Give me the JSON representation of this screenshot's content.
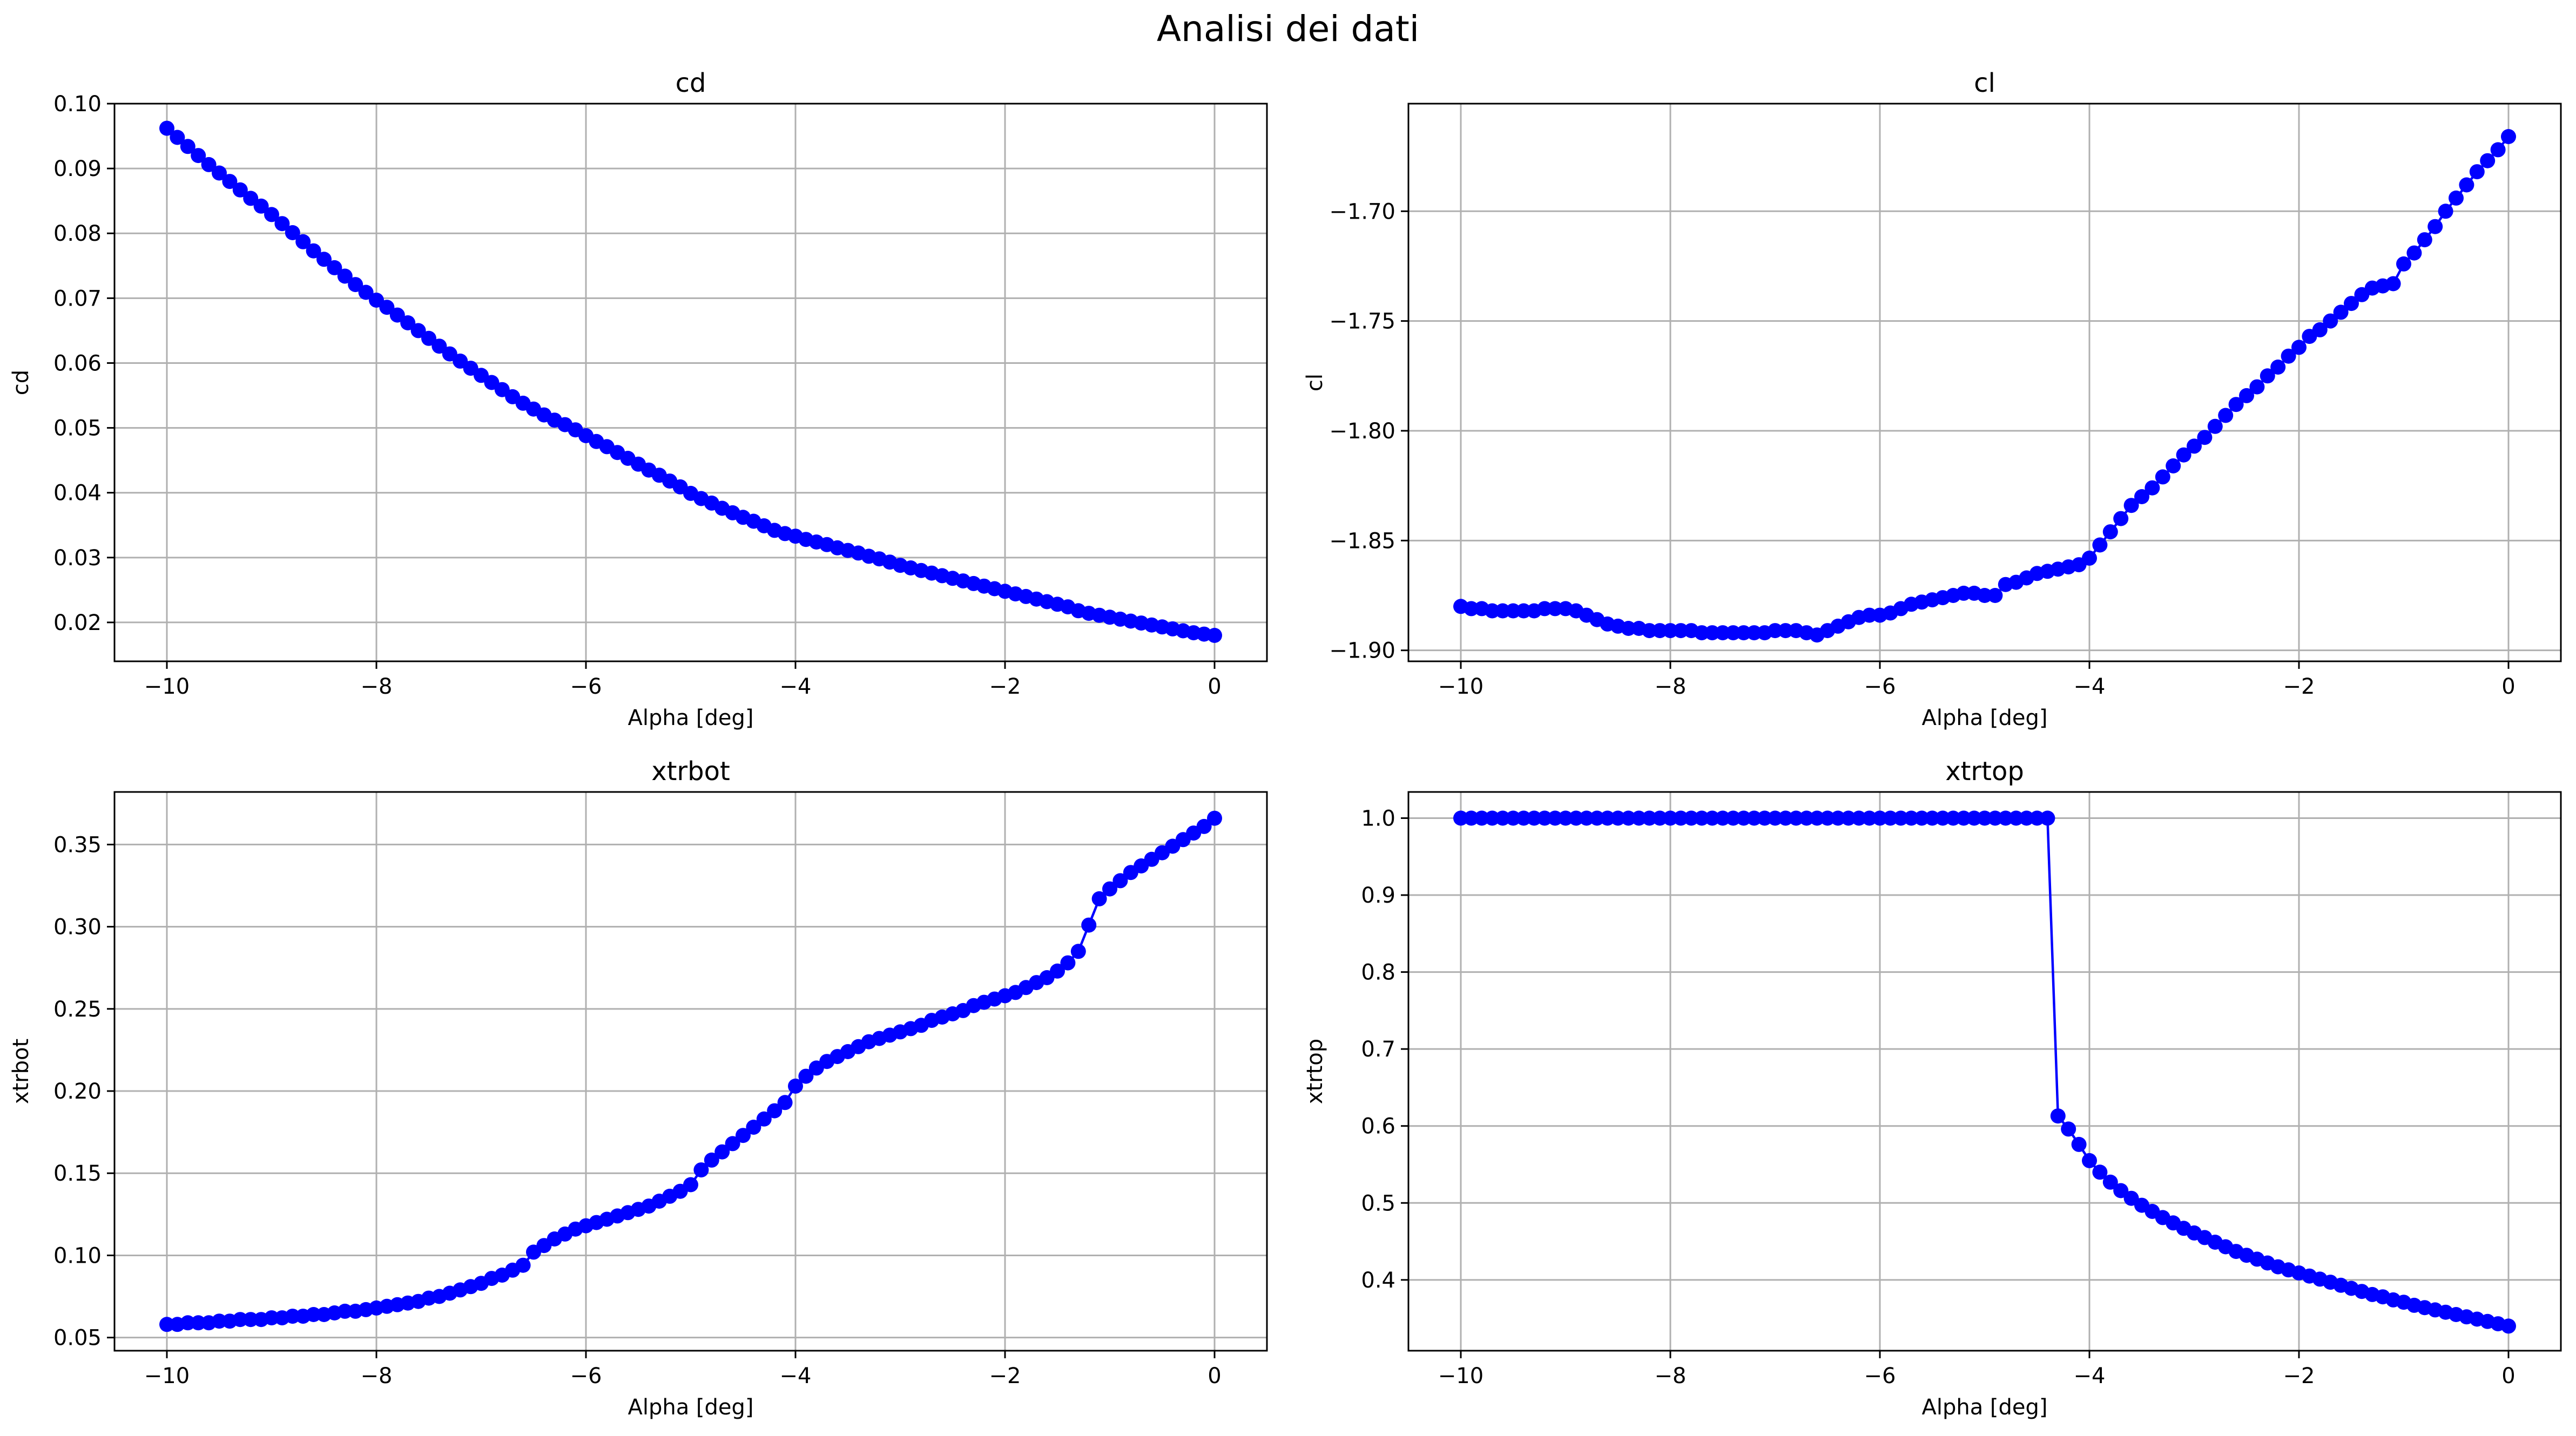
{
  "figure": {
    "title": "Analisi dei dati",
    "series_color": "#0000ff"
  },
  "chart_data": [
    {
      "type": "line",
      "title": "cd",
      "xlabel": "Alpha [deg]",
      "ylabel": "cd",
      "xlim": [
        -10.5,
        0.5
      ],
      "ylim": [
        0.014,
        0.1
      ],
      "xticks": [
        -10,
        -8,
        -6,
        -4,
        -2,
        0
      ],
      "xtick_labels": [
        "−10",
        "−8",
        "−6",
        "−4",
        "−2",
        "0"
      ],
      "yticks": [
        0.02,
        0.03,
        0.04,
        0.05,
        0.06,
        0.07,
        0.08,
        0.09,
        0.1
      ],
      "ytick_labels": [
        "0.02",
        "0.03",
        "0.04",
        "0.05",
        "0.06",
        "0.07",
        "0.08",
        "0.09",
        "0.10"
      ],
      "grid": true,
      "markers": true,
      "x": [
        -10.0,
        -9.9,
        -9.8,
        -9.7,
        -9.6,
        -9.5,
        -9.4,
        -9.3,
        -9.2,
        -9.1,
        -9.0,
        -8.9,
        -8.8,
        -8.7,
        -8.6,
        -8.5,
        -8.4,
        -8.3,
        -8.2,
        -8.1,
        -8.0,
        -7.9,
        -7.8,
        -7.7,
        -7.6,
        -7.5,
        -7.4,
        -7.3,
        -7.2,
        -7.1,
        -7.0,
        -6.9,
        -6.8,
        -6.7,
        -6.6,
        -6.5,
        -6.4,
        -6.3,
        -6.2,
        -6.1,
        -6.0,
        -5.9,
        -5.8,
        -5.7,
        -5.6,
        -5.5,
        -5.4,
        -5.3,
        -5.2,
        -5.1,
        -5.0,
        -4.9,
        -4.8,
        -4.7,
        -4.6,
        -4.5,
        -4.4,
        -4.3,
        -4.2,
        -4.1,
        -4.0,
        -3.9,
        -3.8,
        -3.7,
        -3.6,
        -3.5,
        -3.4,
        -3.3,
        -3.2,
        -3.1,
        -3.0,
        -2.9,
        -2.8,
        -2.7,
        -2.6,
        -2.5,
        -2.4,
        -2.3,
        -2.2,
        -2.1,
        -2.0,
        -1.9,
        -1.8,
        -1.7,
        -1.6,
        -1.5,
        -1.4,
        -1.3,
        -1.2,
        -1.1,
        -1.0,
        -0.9,
        -0.8,
        -0.7,
        -0.6,
        -0.5,
        -0.4,
        -0.3,
        -0.2,
        -0.1,
        0.0
      ],
      "y": [
        0.0962,
        0.0948,
        0.0934,
        0.092,
        0.0906,
        0.0893,
        0.088,
        0.0867,
        0.0854,
        0.0842,
        0.0829,
        0.0815,
        0.0801,
        0.0787,
        0.0773,
        0.076,
        0.0747,
        0.0734,
        0.0721,
        0.0709,
        0.0697,
        0.0686,
        0.0674,
        0.0662,
        0.065,
        0.0638,
        0.0626,
        0.0614,
        0.0603,
        0.0592,
        0.0581,
        0.057,
        0.0559,
        0.0548,
        0.0538,
        0.0529,
        0.052,
        0.0512,
        0.0505,
        0.0497,
        0.0488,
        0.0479,
        0.0471,
        0.0462,
        0.0453,
        0.0444,
        0.0435,
        0.0427,
        0.0418,
        0.0409,
        0.0399,
        0.0391,
        0.0384,
        0.0376,
        0.0369,
        0.0362,
        0.0356,
        0.0349,
        0.0342,
        0.0337,
        0.0333,
        0.0328,
        0.0324,
        0.032,
        0.0315,
        0.0311,
        0.0307,
        0.0302,
        0.0298,
        0.0293,
        0.0288,
        0.0284,
        0.028,
        0.0276,
        0.0272,
        0.0268,
        0.0264,
        0.026,
        0.0256,
        0.0252,
        0.0248,
        0.0244,
        0.024,
        0.0236,
        0.0232,
        0.0228,
        0.0224,
        0.0218,
        0.0214,
        0.0211,
        0.0208,
        0.0205,
        0.0202,
        0.0199,
        0.0196,
        0.0193,
        0.019,
        0.0187,
        0.0184,
        0.0182,
        0.018
      ]
    },
    {
      "type": "line",
      "title": "cl",
      "xlabel": "Alpha [deg]",
      "ylabel": "cl",
      "xlim": [
        -10.5,
        0.5
      ],
      "ylim": [
        -1.905,
        -1.651
      ],
      "xticks": [
        -10,
        -8,
        -6,
        -4,
        -2,
        0
      ],
      "xtick_labels": [
        "−10",
        "−8",
        "−6",
        "−4",
        "−2",
        "0"
      ],
      "yticks": [
        -1.9,
        -1.85,
        -1.8,
        -1.75,
        -1.7
      ],
      "ytick_labels": [
        "−1.90",
        "−1.85",
        "−1.80",
        "−1.75",
        "−1.70"
      ],
      "grid": true,
      "markers": true,
      "x": [
        -10.0,
        -9.9,
        -9.8,
        -9.7,
        -9.6,
        -9.5,
        -9.4,
        -9.3,
        -9.2,
        -9.1,
        -9.0,
        -8.9,
        -8.8,
        -8.7,
        -8.6,
        -8.5,
        -8.4,
        -8.3,
        -8.2,
        -8.1,
        -8.0,
        -7.9,
        -7.8,
        -7.7,
        -7.6,
        -7.5,
        -7.4,
        -7.3,
        -7.2,
        -7.1,
        -7.0,
        -6.9,
        -6.8,
        -6.7,
        -6.6,
        -6.5,
        -6.4,
        -6.3,
        -6.2,
        -6.1,
        -6.0,
        -5.9,
        -5.8,
        -5.7,
        -5.6,
        -5.5,
        -5.4,
        -5.3,
        -5.2,
        -5.1,
        -5.0,
        -4.9,
        -4.8,
        -4.7,
        -4.6,
        -4.5,
        -4.4,
        -4.3,
        -4.2,
        -4.1,
        -4.0,
        -3.9,
        -3.8,
        -3.7,
        -3.6,
        -3.5,
        -3.4,
        -3.3,
        -3.2,
        -3.1,
        -3.0,
        -2.9,
        -2.8,
        -2.7,
        -2.6,
        -2.5,
        -2.4,
        -2.3,
        -2.2,
        -2.1,
        -2.0,
        -1.9,
        -1.8,
        -1.7,
        -1.6,
        -1.5,
        -1.4,
        -1.3,
        -1.2,
        -1.1,
        -1.0,
        -0.9,
        -0.8,
        -0.7,
        -0.6,
        -0.5,
        -0.4,
        -0.3,
        -0.2,
        -0.1,
        0.0
      ],
      "y": [
        -1.88,
        -1.881,
        -1.881,
        -1.882,
        -1.882,
        -1.882,
        -1.882,
        -1.882,
        -1.881,
        -1.881,
        -1.881,
        -1.882,
        -1.884,
        -1.886,
        -1.888,
        -1.889,
        -1.89,
        -1.89,
        -1.891,
        -1.891,
        -1.891,
        -1.891,
        -1.891,
        -1.892,
        -1.892,
        -1.892,
        -1.892,
        -1.892,
        -1.892,
        -1.892,
        -1.891,
        -1.891,
        -1.891,
        -1.892,
        -1.893,
        -1.891,
        -1.889,
        -1.887,
        -1.885,
        -1.884,
        -1.884,
        -1.883,
        -1.881,
        -1.879,
        -1.878,
        -1.877,
        -1.876,
        -1.875,
        -1.874,
        -1.874,
        -1.875,
        -1.875,
        -1.87,
        -1.869,
        -1.867,
        -1.865,
        -1.864,
        -1.863,
        -1.862,
        -1.861,
        -1.858,
        -1.852,
        -1.846,
        -1.84,
        -1.834,
        -1.83,
        -1.826,
        -1.821,
        -1.816,
        -1.811,
        -1.807,
        -1.803,
        -1.798,
        -1.793,
        -1.788,
        -1.784,
        -1.78,
        -1.775,
        -1.771,
        -1.766,
        -1.762,
        -1.757,
        -1.754,
        -1.75,
        -1.746,
        -1.742,
        -1.738,
        -1.735,
        -1.734,
        -1.733,
        -1.724,
        -1.719,
        -1.713,
        -1.707,
        -1.7,
        -1.694,
        -1.688,
        -1.682,
        -1.677,
        -1.672,
        -1.666
      ]
    },
    {
      "type": "line",
      "title": "xtrbot",
      "xlabel": "Alpha [deg]",
      "ylabel": "xtrbot",
      "xlim": [
        -10.5,
        0.5
      ],
      "ylim": [
        0.042,
        0.382
      ],
      "xticks": [
        -10,
        -8,
        -6,
        -4,
        -2,
        0
      ],
      "xtick_labels": [
        "−10",
        "−8",
        "−6",
        "−4",
        "−2",
        "0"
      ],
      "yticks": [
        0.05,
        0.1,
        0.15,
        0.2,
        0.25,
        0.3,
        0.35
      ],
      "ytick_labels": [
        "0.05",
        "0.10",
        "0.15",
        "0.20",
        "0.25",
        "0.30",
        "0.35"
      ],
      "grid": true,
      "markers": true,
      "x": [
        -10.0,
        -9.9,
        -9.8,
        -9.7,
        -9.6,
        -9.5,
        -9.4,
        -9.3,
        -9.2,
        -9.1,
        -9.0,
        -8.9,
        -8.8,
        -8.7,
        -8.6,
        -8.5,
        -8.4,
        -8.3,
        -8.2,
        -8.1,
        -8.0,
        -7.9,
        -7.8,
        -7.7,
        -7.6,
        -7.5,
        -7.4,
        -7.3,
        -7.2,
        -7.1,
        -7.0,
        -6.9,
        -6.8,
        -6.7,
        -6.6,
        -6.5,
        -6.4,
        -6.3,
        -6.2,
        -6.1,
        -6.0,
        -5.9,
        -5.8,
        -5.7,
        -5.6,
        -5.5,
        -5.4,
        -5.3,
        -5.2,
        -5.1,
        -5.0,
        -4.9,
        -4.8,
        -4.7,
        -4.6,
        -4.5,
        -4.4,
        -4.3,
        -4.2,
        -4.1,
        -4.0,
        -3.9,
        -3.8,
        -3.7,
        -3.6,
        -3.5,
        -3.4,
        -3.3,
        -3.2,
        -3.1,
        -3.0,
        -2.9,
        -2.8,
        -2.7,
        -2.6,
        -2.5,
        -2.4,
        -2.3,
        -2.2,
        -2.1,
        -2.0,
        -1.9,
        -1.8,
        -1.7,
        -1.6,
        -1.5,
        -1.4,
        -1.3,
        -1.2,
        -1.1,
        -1.0,
        -0.9,
        -0.8,
        -0.7,
        -0.6,
        -0.5,
        -0.4,
        -0.3,
        -0.2,
        -0.1,
        0.0
      ],
      "y": [
        0.058,
        0.058,
        0.059,
        0.059,
        0.059,
        0.06,
        0.06,
        0.061,
        0.061,
        0.061,
        0.062,
        0.062,
        0.063,
        0.063,
        0.064,
        0.064,
        0.065,
        0.066,
        0.066,
        0.067,
        0.068,
        0.069,
        0.07,
        0.071,
        0.072,
        0.074,
        0.075,
        0.077,
        0.079,
        0.081,
        0.083,
        0.086,
        0.088,
        0.091,
        0.094,
        0.102,
        0.106,
        0.11,
        0.113,
        0.116,
        0.118,
        0.12,
        0.122,
        0.124,
        0.126,
        0.128,
        0.13,
        0.133,
        0.136,
        0.139,
        0.143,
        0.152,
        0.158,
        0.163,
        0.168,
        0.173,
        0.178,
        0.183,
        0.188,
        0.193,
        0.203,
        0.209,
        0.214,
        0.218,
        0.221,
        0.224,
        0.227,
        0.23,
        0.232,
        0.234,
        0.236,
        0.238,
        0.24,
        0.243,
        0.245,
        0.247,
        0.249,
        0.252,
        0.254,
        0.256,
        0.258,
        0.26,
        0.263,
        0.266,
        0.269,
        0.273,
        0.278,
        0.285,
        0.301,
        0.317,
        0.323,
        0.328,
        0.333,
        0.337,
        0.341,
        0.345,
        0.349,
        0.353,
        0.357,
        0.361,
        0.366
      ]
    },
    {
      "type": "line",
      "title": "xtrtop",
      "xlabel": "Alpha [deg]",
      "ylabel": "xtrtop",
      "xlim": [
        -10.5,
        0.5
      ],
      "ylim": [
        0.308,
        1.034
      ],
      "xticks": [
        -10,
        -8,
        -6,
        -4,
        -2,
        0
      ],
      "xtick_labels": [
        "−10",
        "−8",
        "−6",
        "−4",
        "−2",
        "0"
      ],
      "yticks": [
        0.4,
        0.5,
        0.6,
        0.7,
        0.8,
        0.9,
        1.0
      ],
      "ytick_labels": [
        "0.4",
        "0.5",
        "0.6",
        "0.7",
        "0.8",
        "0.9",
        "1.0"
      ],
      "grid": true,
      "markers": true,
      "x": [
        -10.0,
        -9.9,
        -9.8,
        -9.7,
        -9.6,
        -9.5,
        -9.4,
        -9.3,
        -9.2,
        -9.1,
        -9.0,
        -8.9,
        -8.8,
        -8.7,
        -8.6,
        -8.5,
        -8.4,
        -8.3,
        -8.2,
        -8.1,
        -8.0,
        -7.9,
        -7.8,
        -7.7,
        -7.6,
        -7.5,
        -7.4,
        -7.3,
        -7.2,
        -7.1,
        -7.0,
        -6.9,
        -6.8,
        -6.7,
        -6.6,
        -6.5,
        -6.4,
        -6.3,
        -6.2,
        -6.1,
        -6.0,
        -5.9,
        -5.8,
        -5.7,
        -5.6,
        -5.5,
        -5.4,
        -5.3,
        -5.2,
        -5.1,
        -5.0,
        -4.9,
        -4.8,
        -4.7,
        -4.6,
        -4.5,
        -4.4,
        -4.3,
        -4.2,
        -4.1,
        -4.0,
        -3.9,
        -3.8,
        -3.7,
        -3.6,
        -3.5,
        -3.4,
        -3.3,
        -3.2,
        -3.1,
        -3.0,
        -2.9,
        -2.8,
        -2.7,
        -2.6,
        -2.5,
        -2.4,
        -2.3,
        -2.2,
        -2.1,
        -2.0,
        -1.9,
        -1.8,
        -1.7,
        -1.6,
        -1.5,
        -1.4,
        -1.3,
        -1.2,
        -1.1,
        -1.0,
        -0.9,
        -0.8,
        -0.7,
        -0.6,
        -0.5,
        -0.4,
        -0.3,
        -0.2,
        -0.1,
        0.0
      ],
      "y": [
        1.0,
        1.0,
        1.0,
        1.0,
        1.0,
        1.0,
        1.0,
        1.0,
        1.0,
        1.0,
        1.0,
        1.0,
        1.0,
        1.0,
        1.0,
        1.0,
        1.0,
        1.0,
        1.0,
        1.0,
        1.0,
        1.0,
        1.0,
        1.0,
        1.0,
        1.0,
        1.0,
        1.0,
        1.0,
        1.0,
        1.0,
        1.0,
        1.0,
        1.0,
        1.0,
        1.0,
        1.0,
        1.0,
        1.0,
        1.0,
        1.0,
        1.0,
        1.0,
        1.0,
        1.0,
        1.0,
        1.0,
        1.0,
        1.0,
        1.0,
        1.0,
        1.0,
        1.0,
        1.0,
        1.0,
        1.0,
        1.0,
        0.613,
        0.596,
        0.576,
        0.555,
        0.54,
        0.527,
        0.516,
        0.506,
        0.497,
        0.489,
        0.481,
        0.474,
        0.467,
        0.461,
        0.455,
        0.449,
        0.443,
        0.437,
        0.432,
        0.427,
        0.422,
        0.417,
        0.413,
        0.409,
        0.405,
        0.401,
        0.397,
        0.393,
        0.389,
        0.385,
        0.381,
        0.378,
        0.374,
        0.371,
        0.367,
        0.364,
        0.361,
        0.358,
        0.355,
        0.352,
        0.349,
        0.346,
        0.343,
        0.34
      ]
    }
  ]
}
